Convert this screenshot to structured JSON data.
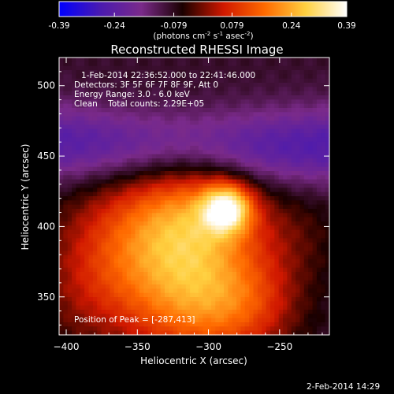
{
  "colorbar": {
    "ticks": [
      "-0.39",
      "-0.24",
      "-0.079",
      "0.079",
      "0.24",
      "0.39"
    ],
    "vmin": -0.39,
    "vmax": 0.39,
    "unit_main": "(photons cm",
    "unit_sup1": "-2",
    "unit_mid1": " s",
    "unit_sup2": "-1",
    "unit_mid2": " asec",
    "unit_sup3": "-2",
    "unit_end": ")",
    "colors": [
      "#0000ff",
      "#4a1ab0",
      "#7a2a8a",
      "#1a0000",
      "#d01800",
      "#ff6a00",
      "#ffd040",
      "#ffffff"
    ]
  },
  "chart_data": {
    "type": "heatmap",
    "title": "Reconstructed RHESSI Image",
    "xlabel": "Heliocentric X (arcsec)",
    "ylabel": "Heliocentric Y (arcsec)",
    "xlim": [
      -405,
      -215
    ],
    "ylim": [
      323,
      520
    ],
    "xticks": [
      -400,
      -350,
      -300,
      -250
    ],
    "yticks": [
      350,
      400,
      450,
      500
    ],
    "info_lines": [
      "1-Feb-2014 22:36:52.000 to 22:41:46.000",
      "Detectors: 3F 5F 6F 7F 8F 9F, Att 0",
      "Energy Range: 3.0 - 6.0 keV",
      "Clean    Total counts: 2.29E+05"
    ],
    "peak_label": "Position of Peak = [-287,413]",
    "peak": [
      -287,
      413
    ],
    "components": [
      {
        "x": -287,
        "y": 413,
        "sigma": 12,
        "amp": 0.33
      },
      {
        "x": -305,
        "y": 408,
        "sigma": 30,
        "amp": 0.16
      },
      {
        "x": -330,
        "y": 398,
        "sigma": 40,
        "amp": 0.14
      },
      {
        "x": -310,
        "y": 345,
        "sigma": 32,
        "amp": 0.2
      },
      {
        "x": -270,
        "y": 345,
        "sigma": 26,
        "amp": 0.12
      },
      {
        "x": -360,
        "y": 385,
        "sigma": 35,
        "amp": 0.1
      },
      {
        "x": -240,
        "y": 395,
        "sigma": 25,
        "amp": 0.05
      },
      {
        "x": -385,
        "y": 348,
        "sigma": 30,
        "amp": 0.06
      }
    ],
    "negative_band": {
      "center_y": 455,
      "width": 20,
      "depth": -0.17
    },
    "background": -0.09
  },
  "footer": {
    "date": "2-Feb-2014 14:29"
  }
}
